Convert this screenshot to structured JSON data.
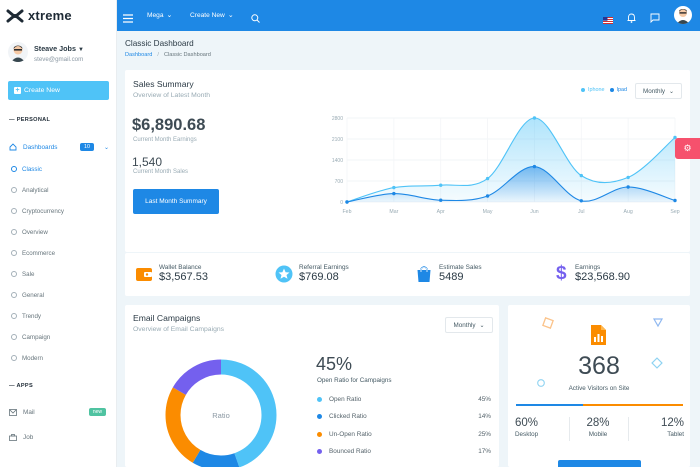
{
  "app": {
    "brand": "xtreme"
  },
  "topbar": {
    "mega": "Mega",
    "create_new": "Create New"
  },
  "user": {
    "name": "Steave Jobs",
    "email": "steve@gmail.com"
  },
  "sidebar": {
    "create_label": "Create New",
    "personal_label": "PERSONAL",
    "dashboards": {
      "label": "Dashboards",
      "badge": "10"
    },
    "sub_items": [
      "Classic",
      "Analytical",
      "Cryptocurrency",
      "Overview",
      "Ecommerce",
      "Sale",
      "General",
      "Trendy",
      "Campaign",
      "Modern"
    ],
    "apps_label": "APPS",
    "mail": {
      "label": "Mail",
      "badge": "new"
    },
    "job": {
      "label": "Job"
    }
  },
  "page": {
    "title": "Classic Dashboard",
    "breadcrumb_home": "Dashboard",
    "breadcrumb_sep": "/",
    "breadcrumb_current": "Classic Dashboard"
  },
  "sales": {
    "title": "Sales Summary",
    "subtitle": "Overview of Latest Month",
    "legend_a": "Iphone",
    "legend_b": "Ipad",
    "period": "Monthly",
    "earnings_value": "$6,890.68",
    "earnings_label": "Current Month Earnings",
    "sales_value": "1,540",
    "sales_label": "Current Month Sales",
    "button": "Last Month Summary"
  },
  "chart_data": {
    "type": "area",
    "x": [
      "Feb",
      "Mar",
      "Apr",
      "May",
      "Jun",
      "Jul",
      "Aug",
      "Sep"
    ],
    "yticks": [
      0,
      700,
      1400,
      2100,
      2800
    ],
    "ylim": [
      0,
      2800
    ],
    "series": [
      {
        "name": "Iphone",
        "color": "#4fc3f7",
        "values": [
          0,
          480,
          560,
          780,
          2800,
          880,
          820,
          2150
        ]
      },
      {
        "name": "Ipad",
        "color": "#1e88e5",
        "values": [
          0,
          280,
          60,
          200,
          1180,
          40,
          500,
          50
        ]
      }
    ]
  },
  "stats": [
    {
      "label": "Wallet Balance",
      "value": "$3,567.53",
      "icon": "wallet-icon",
      "color": "#fb8c00"
    },
    {
      "label": "Referral Earnings",
      "value": "$769.08",
      "icon": "star-icon",
      "color": "#4fc3f7"
    },
    {
      "label": "Estimate Sales",
      "value": "5489",
      "icon": "bag-icon",
      "color": "#1e88e5"
    },
    {
      "label": "Earnings",
      "value": "$23,568.90",
      "icon": "dollar-icon",
      "color": "#7460ee"
    }
  ],
  "email": {
    "title": "Email Campaigns",
    "subtitle": "Overview of Email Campaigns",
    "period": "Monthly",
    "percent": "45%",
    "percent_label": "Open Ratio for Campaigns",
    "donut_label": "Ratio",
    "rows": [
      {
        "label": "Open Ratio",
        "value": "45%",
        "color": "#4fc3f7"
      },
      {
        "label": "Clicked Ratio",
        "value": "14%",
        "color": "#1e88e5"
      },
      {
        "label": "Un-Open Ratio",
        "value": "25%",
        "color": "#fb8c00"
      },
      {
        "label": "Bounced Ratio",
        "value": "17%",
        "color": "#7460ee"
      }
    ]
  },
  "visitors": {
    "count": "368",
    "label": "Active Visitors on Site",
    "progress": [
      0.4,
      0.6
    ],
    "devices": [
      {
        "value": "60%",
        "label": "Desktop"
      },
      {
        "value": "28%",
        "label": "Mobile"
      },
      {
        "value": "12%",
        "label": "Tablet"
      }
    ]
  }
}
